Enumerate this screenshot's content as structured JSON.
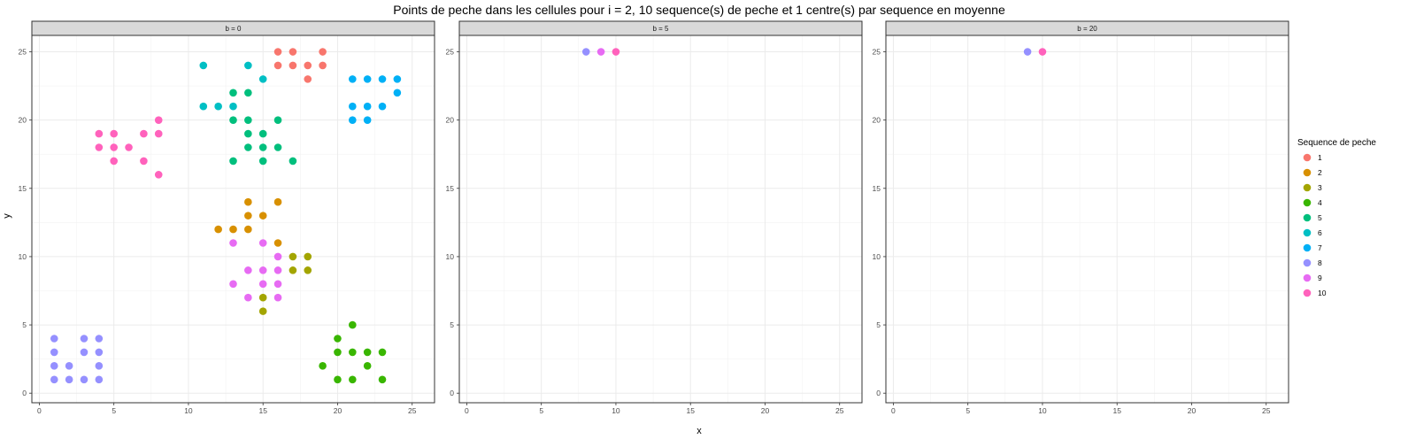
{
  "chart_data": {
    "type": "scatter",
    "title": "Points de peche dans les cellules pour i = 2, 10 sequence(s) de peche et 1 centre(s) par sequence en moyenne",
    "xlabel": "x",
    "ylabel": "y",
    "xlim": [
      -0.5,
      26.5
    ],
    "ylim": [
      -0.7,
      26.2
    ],
    "x_ticks": [
      0,
      5,
      10,
      15,
      20,
      25
    ],
    "y_ticks": [
      0,
      5,
      10,
      15,
      20,
      25
    ],
    "grid": true,
    "legend": {
      "title": "Sequence de peche",
      "position": "right",
      "entries": [
        "1",
        "2",
        "3",
        "4",
        "5",
        "6",
        "7",
        "8",
        "9",
        "10"
      ],
      "colors": [
        "#F8766D",
        "#D89000",
        "#A3A500",
        "#39B600",
        "#00BF7D",
        "#00BFC4",
        "#00B0F6",
        "#9590FF",
        "#E76BF3",
        "#FF62BC"
      ]
    },
    "panels": [
      {
        "strip": "b = 0",
        "series": [
          {
            "name": "1",
            "points": [
              [
                16,
                25
              ],
              [
                17,
                25
              ],
              [
                19,
                25
              ],
              [
                16,
                24
              ],
              [
                17,
                24
              ],
              [
                18,
                24
              ],
              [
                19,
                24
              ],
              [
                18,
                23
              ]
            ]
          },
          {
            "name": "2",
            "points": [
              [
                14,
                14
              ],
              [
                16,
                14
              ],
              [
                14,
                13
              ],
              [
                15,
                13
              ],
              [
                12,
                12
              ],
              [
                13,
                12
              ],
              [
                14,
                12
              ],
              [
                16,
                11
              ]
            ]
          },
          {
            "name": "3",
            "points": [
              [
                17,
                10
              ],
              [
                18,
                10
              ],
              [
                17,
                9
              ],
              [
                18,
                9
              ],
              [
                15,
                7
              ],
              [
                15,
                6
              ]
            ]
          },
          {
            "name": "4",
            "points": [
              [
                21,
                5
              ],
              [
                20,
                4
              ],
              [
                20,
                3
              ],
              [
                21,
                3
              ],
              [
                22,
                3
              ],
              [
                23,
                3
              ],
              [
                19,
                2
              ],
              [
                22,
                2
              ],
              [
                20,
                1
              ],
              [
                21,
                1
              ],
              [
                23,
                1
              ]
            ]
          },
          {
            "name": "5",
            "points": [
              [
                13,
                22
              ],
              [
                14,
                22
              ],
              [
                13,
                20
              ],
              [
                14,
                20
              ],
              [
                16,
                20
              ],
              [
                14,
                19
              ],
              [
                15,
                19
              ],
              [
                14,
                18
              ],
              [
                15,
                18
              ],
              [
                16,
                18
              ],
              [
                13,
                17
              ],
              [
                15,
                17
              ],
              [
                17,
                17
              ]
            ]
          },
          {
            "name": "6",
            "points": [
              [
                11,
                24
              ],
              [
                14,
                24
              ],
              [
                15,
                23
              ],
              [
                11,
                21
              ],
              [
                12,
                21
              ],
              [
                13,
                21
              ]
            ]
          },
          {
            "name": "7",
            "points": [
              [
                21,
                23
              ],
              [
                22,
                23
              ],
              [
                23,
                23
              ],
              [
                24,
                23
              ],
              [
                24,
                22
              ],
              [
                21,
                21
              ],
              [
                22,
                21
              ],
              [
                23,
                21
              ],
              [
                21,
                20
              ],
              [
                22,
                20
              ]
            ]
          },
          {
            "name": "8",
            "points": [
              [
                1,
                4
              ],
              [
                3,
                4
              ],
              [
                4,
                4
              ],
              [
                1,
                3
              ],
              [
                3,
                3
              ],
              [
                4,
                3
              ],
              [
                1,
                2
              ],
              [
                2,
                2
              ],
              [
                4,
                2
              ],
              [
                1,
                1
              ],
              [
                2,
                1
              ],
              [
                3,
                1
              ],
              [
                4,
                1
              ]
            ]
          },
          {
            "name": "9",
            "points": [
              [
                13,
                11
              ],
              [
                15,
                11
              ],
              [
                16,
                10
              ],
              [
                14,
                9
              ],
              [
                15,
                9
              ],
              [
                16,
                9
              ],
              [
                13,
                8
              ],
              [
                15,
                8
              ],
              [
                16,
                8
              ],
              [
                14,
                7
              ],
              [
                16,
                7
              ]
            ]
          },
          {
            "name": "10",
            "points": [
              [
                8,
                20
              ],
              [
                4,
                19
              ],
              [
                5,
                19
              ],
              [
                7,
                19
              ],
              [
                8,
                19
              ],
              [
                4,
                18
              ],
              [
                5,
                18
              ],
              [
                6,
                18
              ],
              [
                5,
                17
              ],
              [
                7,
                17
              ],
              [
                8,
                16
              ]
            ]
          }
        ]
      },
      {
        "strip": "b = 5",
        "series": [
          {
            "name": "8",
            "points": [
              [
                8,
                25
              ]
            ]
          },
          {
            "name": "9",
            "points": [
              [
                9,
                25
              ]
            ]
          },
          {
            "name": "10",
            "points": [
              [
                10,
                25
              ]
            ]
          }
        ]
      },
      {
        "strip": "b = 20",
        "series": [
          {
            "name": "8",
            "points": [
              [
                9,
                25
              ]
            ]
          },
          {
            "name": "10",
            "points": [
              [
                10,
                25
              ]
            ]
          }
        ]
      }
    ]
  }
}
